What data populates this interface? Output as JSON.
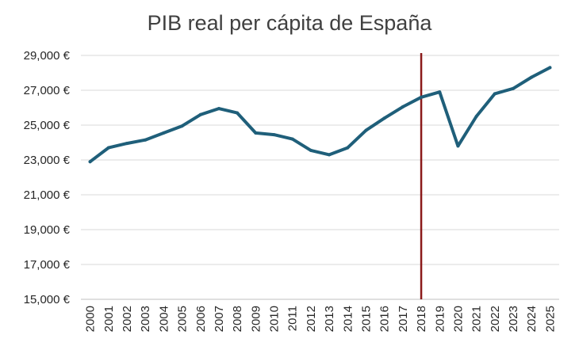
{
  "chart_data": {
    "type": "line",
    "title": "PIB real per cápita de España",
    "xlabel": "",
    "ylabel": "",
    "categories": [
      "2000",
      "2001",
      "2002",
      "2003",
      "2004",
      "2005",
      "2006",
      "2007",
      "2008",
      "2009",
      "2010",
      "2011",
      "2012",
      "2013",
      "2014",
      "2015",
      "2016",
      "2017",
      "2018",
      "2019",
      "2020",
      "2021",
      "2022",
      "2023",
      "2024",
      "2025"
    ],
    "series": [
      {
        "values": [
          22900,
          23700,
          23950,
          24150,
          24550,
          24950,
          25600,
          25950,
          25700,
          24550,
          24450,
          24200,
          23550,
          23300,
          23700,
          24700,
          25400,
          26050,
          26600,
          26900,
          23800,
          25500,
          26800,
          27100,
          27750,
          28300
        ],
        "color": "#1F5F7A"
      }
    ],
    "y_tick_labels": [
      "15,000 €",
      "17,000 €",
      "19,000 €",
      "21,000 €",
      "23,000 €",
      "25,000 €",
      "27,000 €",
      "29,000 €"
    ],
    "y_ticks": [
      15000,
      17000,
      19000,
      21000,
      23000,
      25000,
      27000,
      29000
    ],
    "ylim": [
      15000,
      29000
    ],
    "grid": true,
    "legend": "none",
    "vertical_marker": {
      "category": "2018",
      "color": "#8B1A1A"
    }
  }
}
